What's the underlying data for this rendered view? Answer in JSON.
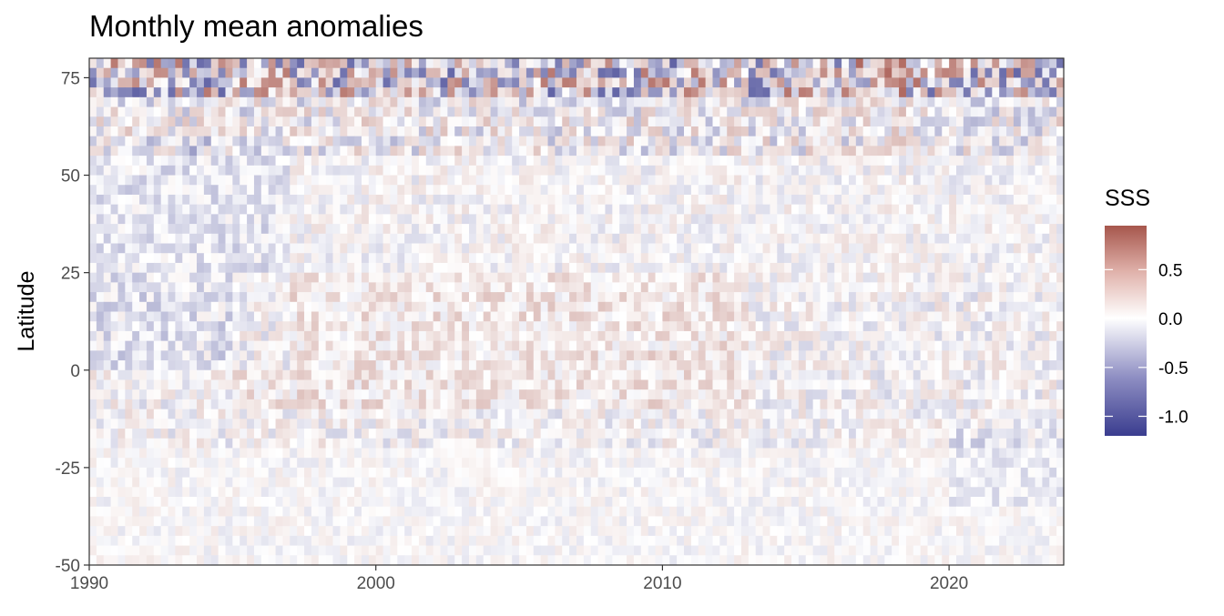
{
  "chart_data": {
    "type": "heatmap",
    "title": "Monthly mean anomalies",
    "xlabel": "",
    "ylabel": "Latitude",
    "xlim": [
      1990,
      2024
    ],
    "ylim": [
      -50,
      80
    ],
    "x_ticks": [
      1990,
      2000,
      2010,
      2020
    ],
    "y_ticks": [
      75,
      50,
      25,
      0,
      -25,
      -50
    ],
    "y_tick_labels": [
      "75",
      "50",
      "25",
      "0",
      "-25",
      "-50"
    ],
    "x_tick_labels": [
      "1990",
      "2000",
      "2010",
      "2020"
    ],
    "grid": false,
    "legend": {
      "title": "SSS",
      "position": "right",
      "range": [
        -1.2,
        0.95
      ],
      "breaks": [
        0.5,
        0.0,
        -0.5,
        -1.0
      ],
      "break_labels": [
        "0.5",
        "0.0",
        "-0.5",
        "-1.0"
      ]
    },
    "colors": {
      "high": "#a6564c",
      "mid": "#ffffff",
      "low": "#3a3d8f"
    }
  }
}
